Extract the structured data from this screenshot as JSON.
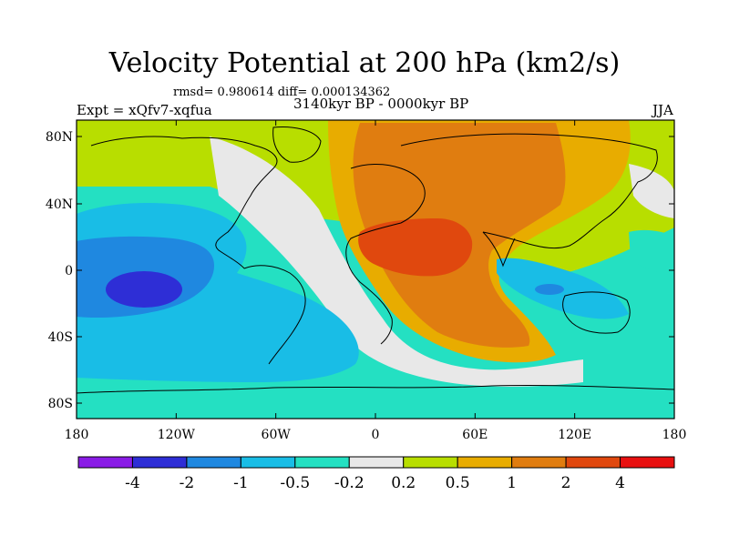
{
  "title": "Velocity Potential at 200 hPa (km2/s)",
  "stats": "rmsd= 0.980614 diff= 0.000134362",
  "experiment": "Expt = xQfv7-xqfua",
  "period": "3140kyr BP - 0000kyr BP",
  "season": "JJA",
  "lat_ticks": [
    "80N",
    "40N",
    "0",
    "40S",
    "80S"
  ],
  "lon_ticks": [
    "180",
    "120W",
    "60W",
    "0",
    "60E",
    "120E",
    "180"
  ],
  "colorbar": {
    "labels": [
      "-4",
      "-2",
      "-1",
      "-0.5",
      "-0.2",
      "0.2",
      "0.5",
      "1",
      "2",
      "4"
    ],
    "colors": [
      "#8a1ce6",
      "#2e2ed6",
      "#1f88e0",
      "#19bde6",
      "#24e0c2",
      "#e8e8e8",
      "#b8de00",
      "#e8ac00",
      "#e07d10",
      "#e0480e",
      "#e81010"
    ]
  },
  "palette": {
    "l_neg2": "#2e2ed6",
    "l_neg1": "#1f88e0",
    "l_neg05": "#19bde6",
    "l_neg02": "#24e0c2",
    "l_zero": "#e8e8e8",
    "l_pos02": "#b8de00",
    "l_pos05": "#e8ac00",
    "l_pos1": "#e07d10",
    "l_pos2": "#e0480e"
  }
}
